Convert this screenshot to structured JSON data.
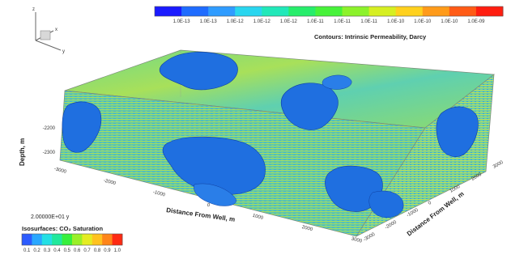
{
  "chart_data": {
    "type": "heatmap",
    "title": "Contours: Intrinsic Permeability, Darcy",
    "xlabel": "Distance From Well, m",
    "ylabel": "Depth, m",
    "zlabel": "Distance From Well, m",
    "time_label": "2.00000E+01 y",
    "permeability_colorbar": {
      "colors": [
        "#1b1bff",
        "#1f6cff",
        "#2f9cff",
        "#29d6ef",
        "#21e8b9",
        "#27ed6b",
        "#47f23a",
        "#8cf22b",
        "#d6ef22",
        "#ffd11e",
        "#ff9b1a",
        "#ff5b16",
        "#ff1e10"
      ],
      "tick_labels": [
        "1.0E-13",
        "1.0E-13",
        "1.0E-12",
        "1.0E-12",
        "1.0E-12",
        "1.0E-11",
        "1.0E-11",
        "1.0E-11",
        "1.0E-10",
        "1.0E-10",
        "1.0E-10",
        "1.0E-09"
      ]
    },
    "saturation_legend": {
      "title": "Isosurfaces: CO₂ Saturation",
      "colors": [
        "#2d5cff",
        "#2aa7ff",
        "#24dfe4",
        "#21e89c",
        "#37ef3d",
        "#9aef28",
        "#e4ec22",
        "#ffc21f",
        "#ff8519",
        "#ff2a12"
      ],
      "values": [
        0.1,
        0.2,
        0.3,
        0.4,
        0.5,
        0.6,
        0.7,
        0.8,
        0.9,
        1.0
      ]
    },
    "x_axis_ticks": [
      "-3000",
      "-2000",
      "-1000",
      "0",
      "1000",
      "2000",
      "3000"
    ],
    "z_axis_ticks": [
      "-3000",
      "-2000",
      "-1000",
      "0",
      "1000",
      "2000",
      "3000"
    ],
    "y_axis_ticks": [
      "-2200",
      "-2300"
    ],
    "orientation_axes": [
      "z",
      "x",
      "y"
    ]
  }
}
